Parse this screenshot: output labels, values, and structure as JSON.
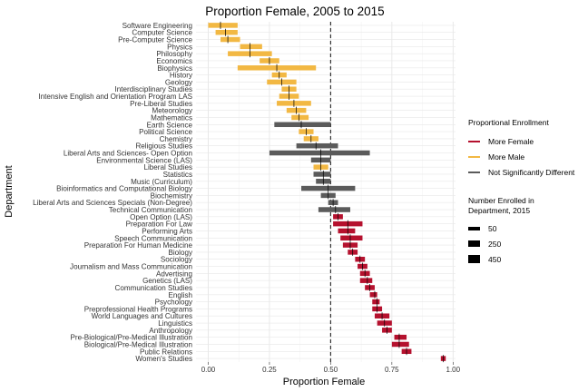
{
  "chart_data": {
    "type": "dot-and-interval",
    "title": "Proportion Female, 2005 to 2015",
    "xlabel": "Proportion Female",
    "ylabel": "Department",
    "xlim": [
      -0.05,
      1.01
    ],
    "x_ticks": [
      0.0,
      0.25,
      0.5,
      0.75,
      1.0
    ],
    "x_tick_labels": [
      "0.00",
      "0.25",
      "0.50",
      "0.75",
      "1.00"
    ],
    "reference_line": 0.5,
    "grid": true,
    "legend_position": "right",
    "colors": {
      "More Female": "#b5112e",
      "More Male": "#f2b843",
      "Not Significantly Different": "#5b5b5b"
    },
    "legend_color": {
      "title": "Proportional Enrollment",
      "entries": [
        {
          "label": "More Female",
          "color": "#b5112e"
        },
        {
          "label": "More Male",
          "color": "#f2b843"
        },
        {
          "label": "Not Significantly Different",
          "color": "#5b5b5b"
        }
      ]
    },
    "legend_size": {
      "title": "Number Enrolled in Department, 2015",
      "entries": [
        {
          "label": "50",
          "value": 50
        },
        {
          "label": "250",
          "value": 250
        },
        {
          "label": "450",
          "value": 450
        }
      ]
    },
    "departments": [
      {
        "name": "Software Engineering",
        "estimate": 0.05,
        "low": 0.0,
        "high": 0.12,
        "group": "More Male"
      },
      {
        "name": "Computer Science",
        "estimate": 0.07,
        "low": 0.03,
        "high": 0.12,
        "group": "More Male"
      },
      {
        "name": "Pre-Computer Science",
        "estimate": 0.08,
        "low": 0.05,
        "high": 0.13,
        "group": "More Male"
      },
      {
        "name": "Physics",
        "estimate": 0.17,
        "low": 0.13,
        "high": 0.22,
        "group": "More Male"
      },
      {
        "name": "Philosophy",
        "estimate": 0.17,
        "low": 0.08,
        "high": 0.26,
        "group": "More Male"
      },
      {
        "name": "Economics",
        "estimate": 0.25,
        "low": 0.21,
        "high": 0.29,
        "group": "More Male"
      },
      {
        "name": "Biophysics",
        "estimate": 0.28,
        "low": 0.12,
        "high": 0.44,
        "group": "More Male"
      },
      {
        "name": "History",
        "estimate": 0.29,
        "low": 0.26,
        "high": 0.32,
        "group": "More Male"
      },
      {
        "name": "Geology",
        "estimate": 0.3,
        "low": 0.24,
        "high": 0.36,
        "group": "More Male"
      },
      {
        "name": "Interdisciplinary Studies",
        "estimate": 0.33,
        "low": 0.3,
        "high": 0.36,
        "group": "More Male"
      },
      {
        "name": "Intensive English and Orientation Program LAS",
        "estimate": 0.33,
        "low": 0.29,
        "high": 0.37,
        "group": "More Male"
      },
      {
        "name": "Pre-Liberal Studies",
        "estimate": 0.35,
        "low": 0.28,
        "high": 0.42,
        "group": "More Male"
      },
      {
        "name": "Meteorology",
        "estimate": 0.36,
        "low": 0.32,
        "high": 0.4,
        "group": "More Male"
      },
      {
        "name": "Mathematics",
        "estimate": 0.37,
        "low": 0.34,
        "high": 0.41,
        "group": "More Male"
      },
      {
        "name": "Earth Science",
        "estimate": 0.38,
        "low": 0.27,
        "high": 0.5,
        "group": "Not Significantly Different"
      },
      {
        "name": "Political Science",
        "estimate": 0.4,
        "low": 0.37,
        "high": 0.43,
        "group": "More Male"
      },
      {
        "name": "Chemistry",
        "estimate": 0.42,
        "low": 0.39,
        "high": 0.45,
        "group": "More Male"
      },
      {
        "name": "Religious Studies",
        "estimate": 0.44,
        "low": 0.36,
        "high": 0.53,
        "group": "Not Significantly Different"
      },
      {
        "name": "Liberal Arts and Sciences- Open Option",
        "estimate": 0.46,
        "low": 0.25,
        "high": 0.66,
        "group": "Not Significantly Different"
      },
      {
        "name": "Environmental Science (LAS)",
        "estimate": 0.46,
        "low": 0.42,
        "high": 0.5,
        "group": "Not Significantly Different"
      },
      {
        "name": "Liberal Studies",
        "estimate": 0.46,
        "low": 0.43,
        "high": 0.49,
        "group": "More Male"
      },
      {
        "name": "Statistics",
        "estimate": 0.47,
        "low": 0.43,
        "high": 0.5,
        "group": "Not Significantly Different"
      },
      {
        "name": "Music (Curriculum)",
        "estimate": 0.47,
        "low": 0.44,
        "high": 0.5,
        "group": "Not Significantly Different"
      },
      {
        "name": "Bioinformatics and Computational Biology",
        "estimate": 0.49,
        "low": 0.38,
        "high": 0.6,
        "group": "Not Significantly Different"
      },
      {
        "name": "Biochemistry",
        "estimate": 0.49,
        "low": 0.46,
        "high": 0.52,
        "group": "Not Significantly Different"
      },
      {
        "name": "Liberal Arts and Sciences Specials (Non-Degree)",
        "estimate": 0.51,
        "low": 0.49,
        "high": 0.53,
        "group": "Not Significantly Different"
      },
      {
        "name": "Technical Communication",
        "estimate": 0.52,
        "low": 0.45,
        "high": 0.58,
        "group": "Not Significantly Different"
      },
      {
        "name": "Open Option (LAS)",
        "estimate": 0.53,
        "low": 0.51,
        "high": 0.55,
        "group": "More Female"
      },
      {
        "name": "Preparation For Law",
        "estimate": 0.57,
        "low": 0.51,
        "high": 0.63,
        "group": "More Female"
      },
      {
        "name": "Performing Arts",
        "estimate": 0.57,
        "low": 0.53,
        "high": 0.6,
        "group": "More Female"
      },
      {
        "name": "Speech Communication",
        "estimate": 0.58,
        "low": 0.54,
        "high": 0.63,
        "group": "More Female"
      },
      {
        "name": "Preparation For Human Medicine",
        "estimate": 0.58,
        "low": 0.55,
        "high": 0.61,
        "group": "More Female"
      },
      {
        "name": "Biology",
        "estimate": 0.59,
        "low": 0.57,
        "high": 0.61,
        "group": "More Female"
      },
      {
        "name": "Sociology",
        "estimate": 0.62,
        "low": 0.6,
        "high": 0.64,
        "group": "More Female"
      },
      {
        "name": "Journalism and Mass Communication",
        "estimate": 0.63,
        "low": 0.61,
        "high": 0.65,
        "group": "More Female"
      },
      {
        "name": "Advertising",
        "estimate": 0.64,
        "low": 0.62,
        "high": 0.66,
        "group": "More Female"
      },
      {
        "name": "Genetics (LAS)",
        "estimate": 0.65,
        "low": 0.62,
        "high": 0.67,
        "group": "More Female"
      },
      {
        "name": "Communication Studies",
        "estimate": 0.66,
        "low": 0.64,
        "high": 0.68,
        "group": "More Female"
      },
      {
        "name": "English",
        "estimate": 0.68,
        "low": 0.66,
        "high": 0.69,
        "group": "More Female"
      },
      {
        "name": "Psychology",
        "estimate": 0.69,
        "low": 0.67,
        "high": 0.7,
        "group": "More Female"
      },
      {
        "name": "Preprofessional Health Programs",
        "estimate": 0.69,
        "low": 0.67,
        "high": 0.71,
        "group": "More Female"
      },
      {
        "name": "World Languages and Cultures",
        "estimate": 0.71,
        "low": 0.68,
        "high": 0.74,
        "group": "More Female"
      },
      {
        "name": "Linguistics",
        "estimate": 0.72,
        "low": 0.69,
        "high": 0.75,
        "group": "More Female"
      },
      {
        "name": "Anthropology",
        "estimate": 0.73,
        "low": 0.71,
        "high": 0.75,
        "group": "More Female"
      },
      {
        "name": "Pre-Biological/Pre-Medical Illustration",
        "estimate": 0.78,
        "low": 0.76,
        "high": 0.81,
        "group": "More Female"
      },
      {
        "name": "Biological/Pre-Medical Illustration",
        "estimate": 0.78,
        "low": 0.75,
        "high": 0.82,
        "group": "More Female"
      },
      {
        "name": "Public Relations",
        "estimate": 0.81,
        "low": 0.79,
        "high": 0.83,
        "group": "More Female"
      },
      {
        "name": "Women's Studies",
        "estimate": 0.96,
        "low": 0.95,
        "high": 0.97,
        "group": "More Female"
      }
    ]
  }
}
